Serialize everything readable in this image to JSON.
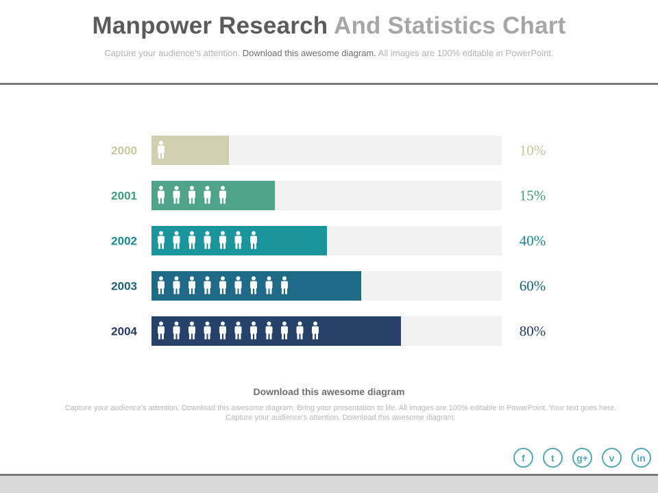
{
  "header": {
    "title_part1": "Manpower Research",
    "title_part2": "And Statistics Chart",
    "subtitle_part1": "Capture your audience’s attention.",
    "subtitle_part2": "Download this awesome diagram.",
    "subtitle_part3": "All images are 100% editable in PowerPoint."
  },
  "chart_data": {
    "type": "bar",
    "orientation": "horizontal",
    "categories": [
      "2000",
      "2001",
      "2002",
      "2003",
      "2004"
    ],
    "values": [
      10,
      15,
      40,
      60,
      80
    ],
    "value_labels": [
      "10%",
      "15%",
      "40%",
      "60%",
      "80%"
    ],
    "person_icon_counts": [
      1,
      5,
      7,
      9,
      11
    ],
    "colors": [
      "#d2cfb0",
      "#4fa389",
      "#1a959b",
      "#1f6a86",
      "#24426a"
    ],
    "label_colors": [
      "#c9c59f",
      "#3f9a7f",
      "#17888f",
      "#1b5f79",
      "#233a5e"
    ],
    "track_color": "#f2f2f2"
  },
  "footer": {
    "title": "Download this awesome diagram",
    "text": "Capture your audience’s attention. Download this awesome diagram. Bring your presentation to life. All images are 100% editable in PowerPoint. Your text goes here. Capture your audience’s attention. Download this awesome diagram."
  },
  "social": [
    {
      "icon": "facebook-icon",
      "glyph": "f"
    },
    {
      "icon": "twitter-icon",
      "glyph": "t"
    },
    {
      "icon": "google-plus-icon",
      "glyph": "g+"
    },
    {
      "icon": "vimeo-icon",
      "glyph": "v"
    },
    {
      "icon": "linkedin-icon",
      "glyph": "in"
    }
  ]
}
